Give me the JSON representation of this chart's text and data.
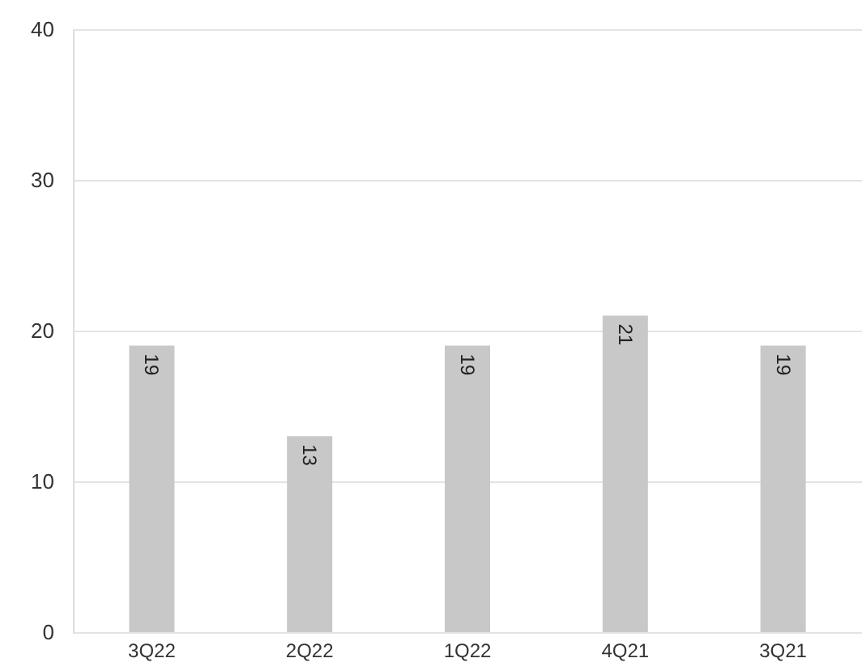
{
  "chart_data": {
    "type": "bar",
    "categories": [
      "3Q22",
      "2Q22",
      "1Q22",
      "4Q21",
      "3Q21"
    ],
    "values": [
      19,
      13,
      19,
      21,
      19
    ],
    "color": "#c8c8c8",
    "ylim": [
      0,
      40
    ],
    "yticks": [
      0,
      10,
      20,
      30,
      40
    ],
    "grid": "y",
    "data_labels": true
  }
}
